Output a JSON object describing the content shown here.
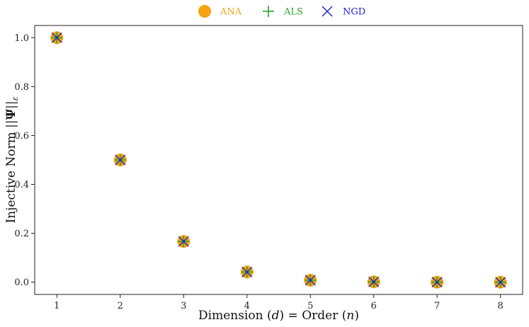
{
  "chart_data": {
    "type": "scatter",
    "xlabel": "Dimension (d) = Order (n)",
    "ylabel": "Injective Norm ||Ψ||ε",
    "x_ticks": [
      "1",
      "2",
      "3",
      "4",
      "5",
      "6",
      "7",
      "8"
    ],
    "y_ticks": [
      "0.0",
      "0.2",
      "0.4",
      "0.6",
      "0.8",
      "1.0"
    ],
    "xlim": [
      0.65,
      8.35
    ],
    "ylim": [
      -0.05,
      1.05
    ],
    "legend_position": "top-center",
    "x": [
      1,
      2,
      3,
      4,
      5,
      6,
      7,
      8
    ],
    "series": [
      {
        "name": "ANA",
        "marker": "circle",
        "color": "#f5a30f",
        "values": [
          1.0,
          0.5,
          0.1667,
          0.0417,
          0.0083,
          0.0014,
          0.0002,
          0.0
        ]
      },
      {
        "name": "ALS",
        "marker": "plus",
        "color": "#2ca02c",
        "values": [
          1.0,
          0.5,
          0.1667,
          0.0417,
          0.0083,
          0.0014,
          0.0002,
          0.0
        ]
      },
      {
        "name": "NGD",
        "marker": "x",
        "color": "#1f1fd1",
        "values": [
          1.0,
          0.5,
          0.1667,
          0.0417,
          0.0083,
          0.0014,
          0.0002,
          0.0
        ]
      }
    ]
  }
}
